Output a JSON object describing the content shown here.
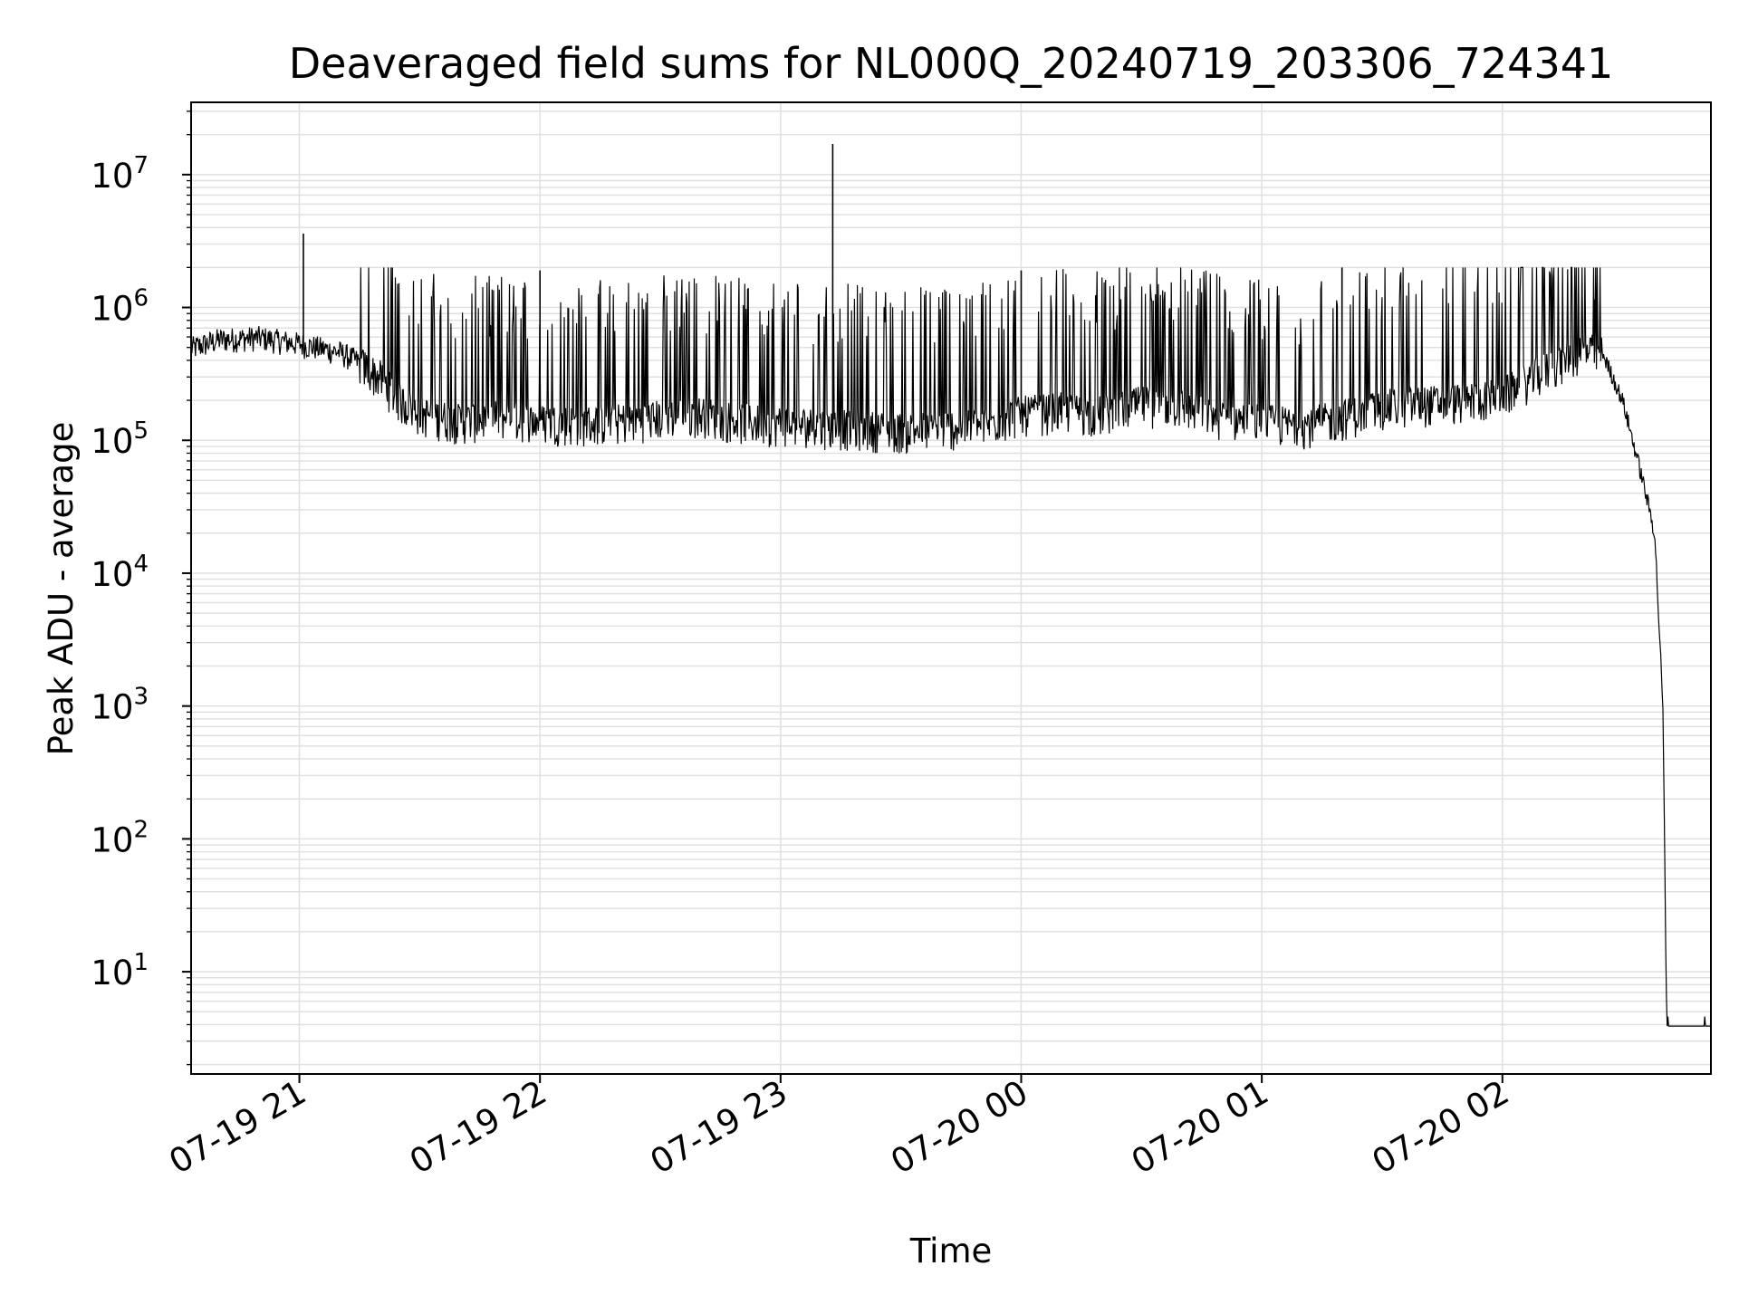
{
  "chart_data": {
    "type": "line",
    "title": "Deaveraged field sums for NL000Q_20240719_203306_724341",
    "xlabel": "Time",
    "ylabel": "Peak ADU - average",
    "yscale": "log",
    "ylim": [
      1.7,
      35000000
    ],
    "xlim": [
      "07-19 20:33",
      "07-20 02:52"
    ],
    "grid": true,
    "grid_color": "#e0e0e0",
    "line_color": "#000000",
    "x_ticks": [
      "07-19 21",
      "07-19 22",
      "07-19 23",
      "07-20 00",
      "07-20 01",
      "07-20 02"
    ],
    "y_ticks": [
      {
        "base": "10",
        "exp": "1",
        "value": 10
      },
      {
        "base": "10",
        "exp": "2",
        "value": 100
      },
      {
        "base": "10",
        "exp": "3",
        "value": 1000
      },
      {
        "base": "10",
        "exp": "4",
        "value": 10000
      },
      {
        "base": "10",
        "exp": "5",
        "value": 100000
      },
      {
        "base": "10",
        "exp": "6",
        "value": 1000000
      },
      {
        "base": "10",
        "exp": "7",
        "value": 10000000
      }
    ],
    "series": [
      {
        "x": [
          "07-19 20:33",
          "07-19 20:40",
          "07-19 20:50",
          "07-19 21:00",
          "07-19 21:10",
          "07-19 21:15",
          "07-19 21:20",
          "07-19 21:25",
          "07-19 21:30",
          "07-19 21:40",
          "07-19 21:50",
          "07-19 22:00",
          "07-19 22:10",
          "07-19 22:20",
          "07-19 22:30",
          "07-19 22:40",
          "07-19 22:50",
          "07-19 23:00",
          "07-19 23:10",
          "07-19 23:20",
          "07-19 23:30",
          "07-19 23:40",
          "07-19 23:50",
          "07-20 00:00",
          "07-20 00:10",
          "07-20 00:20",
          "07-20 00:30",
          "07-20 00:40",
          "07-20 00:50",
          "07-20 01:00",
          "07-20 01:10",
          "07-20 01:20",
          "07-20 01:30",
          "07-20 01:40",
          "07-20 01:50",
          "07-20 02:00",
          "07-20 02:10",
          "07-20 02:20",
          "07-20 02:25",
          "07-20 02:30",
          "07-20 02:35",
          "07-20 02:38",
          "07-20 02:40",
          "07-20 02:41",
          "07-20 02:45",
          "07-20 02:52"
        ],
        "y": [
          480000,
          560000,
          580000,
          520000,
          450000,
          380000,
          300000,
          200000,
          160000,
          140000,
          150000,
          140000,
          135000,
          140000,
          150000,
          160000,
          140000,
          135000,
          130000,
          125000,
          120000,
          125000,
          130000,
          160000,
          170000,
          160000,
          190000,
          180000,
          150000,
          140000,
          130000,
          150000,
          180000,
          190000,
          200000,
          220000,
          330000,
          480000,
          450000,
          200000,
          50000,
          20000,
          1000,
          4,
          4,
          4
        ]
      }
    ],
    "spikes": [
      {
        "x": "07-19 21:01",
        "y": 3600000
      },
      {
        "x": "07-19 22:00",
        "y": 1900000
      },
      {
        "x": "07-19 23:13",
        "y": 17000000
      },
      {
        "x": "07-20 00:00",
        "y": 1900000
      },
      {
        "x": "07-20 01:20",
        "y": 2000000
      },
      {
        "x": "07-20 02:23",
        "y": 1150000
      }
    ]
  }
}
